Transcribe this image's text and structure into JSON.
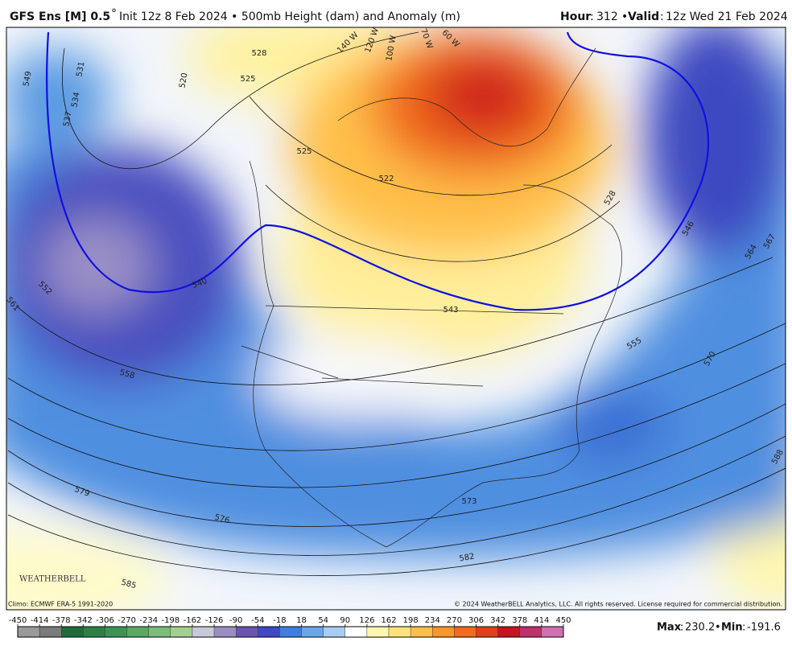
{
  "header": {
    "model": "GFS Ens [M] 0.5",
    "degree": "°",
    "description": "Init 12z 8 Feb 2024 • 500mb Height (dam) and Anomaly (m)",
    "hour_label": "Hour",
    "hour": "312",
    "separator": "•",
    "valid_label": "Valid",
    "valid": "12z Wed 21 Feb 2024"
  },
  "map": {
    "contour_labels": [
      "549",
      "531",
      "534",
      "537",
      "528",
      "525",
      "525",
      "522",
      "528",
      "520",
      "540",
      "552",
      "561",
      "558",
      "543",
      "546",
      "564",
      "567",
      "555",
      "570",
      "573",
      "576",
      "579",
      "582",
      "585",
      "588"
    ],
    "meridian_labels": [
      "140 W",
      "120 W",
      "100 W",
      "70 W",
      "60 W"
    ],
    "logo": "WEATHERBELL"
  },
  "footer": {
    "climo": "Climo: ECMWF ERA-5 1991-2020",
    "copyright": "© 2024 WeatherBELL Analytics, LLC. All rights reserved. License required for commercial distribution."
  },
  "colorbar": {
    "range": [
      -450,
      450
    ],
    "ticks": [
      -450,
      -414,
      -378,
      -342,
      -306,
      -270,
      -234,
      -198,
      -162,
      -126,
      -90,
      -54,
      -18,
      18,
      54,
      90,
      126,
      162,
      198,
      234,
      270,
      306,
      342,
      378,
      414,
      450
    ],
    "colors": [
      "#9a9a9a",
      "#7b7b7b",
      "#1f6b3a",
      "#2f7f45",
      "#3f9352",
      "#5aa864",
      "#7cbd7a",
      "#a3d08f",
      "#c8c8d8",
      "#9a8fc0",
      "#6a55b0",
      "#3f48c8",
      "#3d7ee0",
      "#6aa6ea",
      "#a8cdf2",
      "#ffffff",
      "#fff6b0",
      "#ffe27a",
      "#ffc04a",
      "#ff9628",
      "#f56a1a",
      "#e0401a",
      "#c8141e",
      "#c0306a",
      "#d070b0"
    ]
  },
  "stats": {
    "max_label": "Max",
    "max": "230.2",
    "separator": "•",
    "min_label": "Min",
    "min": "-191.6"
  }
}
